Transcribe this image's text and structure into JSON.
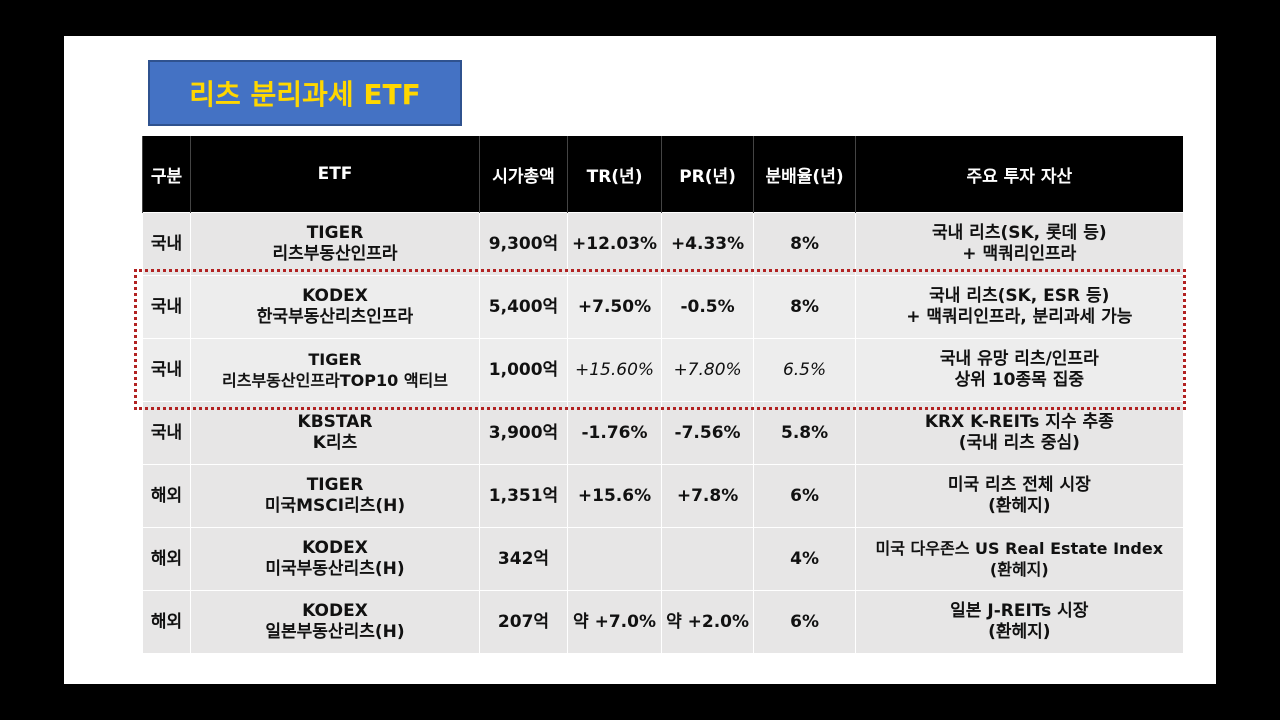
{
  "title": "리츠 분리과세 ETF",
  "headers": [
    "구분",
    "ETF",
    "시가총액",
    "TR(년)",
    "PR(년)",
    "분배율(년)",
    "주요 투자 자산"
  ],
  "rows": [
    {
      "region": "국내",
      "etf1": "TIGER",
      "etf2": "리츠부동산인프라",
      "cap": "9,300억",
      "tr": "+12.03%",
      "pr": "+4.33%",
      "dist": "8%",
      "asset1": "국내 리츠(SK, 롯데 등)",
      "asset2": "+ 맥쿼리인프라"
    },
    {
      "region": "국내",
      "etf1": "KODEX",
      "etf2": "한국부동산리츠인프라",
      "cap": "5,400억",
      "tr": "+7.50%",
      "pr": "-0.5%",
      "dist": "8%",
      "asset1": "국내 리츠(SK, ESR 등)",
      "asset2": "+ 맥쿼리인프라, 분리과세 가능"
    },
    {
      "region": "국내",
      "etf1": "TIGER",
      "etf2": "리츠부동산인프라TOP10 액티브",
      "cap": "1,000억",
      "tr": "+15.60%",
      "pr": "+7.80%",
      "dist": "6.5%",
      "asset1": "국내 유망 리츠/인프라",
      "asset2": "상위 10종목 집중"
    },
    {
      "region": "국내",
      "etf1": "KBSTAR",
      "etf2": "K리츠",
      "cap": "3,900억",
      "tr": "-1.76%",
      "pr": "-7.56%",
      "dist": "5.8%",
      "asset1": "KRX K-REITs 지수 추종",
      "asset2": "(국내 리츠 중심)"
    },
    {
      "region": "해외",
      "etf1": "TIGER",
      "etf2": "미국MSCI리츠(H)",
      "cap": "1,351억",
      "tr": "+15.6%",
      "pr": "+7.8%",
      "dist": "6%",
      "asset1": "미국 리츠 전체 시장",
      "asset2": "(환헤지)"
    },
    {
      "region": "해외",
      "etf1": "KODEX",
      "etf2": "미국부동산리츠(H)",
      "cap": "342억",
      "tr": "",
      "pr": "",
      "dist": "4%",
      "asset1": "미국 다우존스 US Real Estate Index",
      "asset2": "(환헤지)"
    },
    {
      "region": "해외",
      "etf1": "KODEX",
      "etf2": "일본부동산리츠(H)",
      "cap": "207억",
      "tr": "약 +7.0%",
      "pr": "약 +2.0%",
      "dist": "6%",
      "asset1": "일본 J-REITs 시장",
      "asset2": "(환헤지)"
    }
  ],
  "colors": {
    "title_bg": "#4472C4",
    "title_text": "#FFD700",
    "header_bg": "#000000",
    "cell_bg": "#E7E6E6",
    "highlight_border": "#B22222"
  }
}
